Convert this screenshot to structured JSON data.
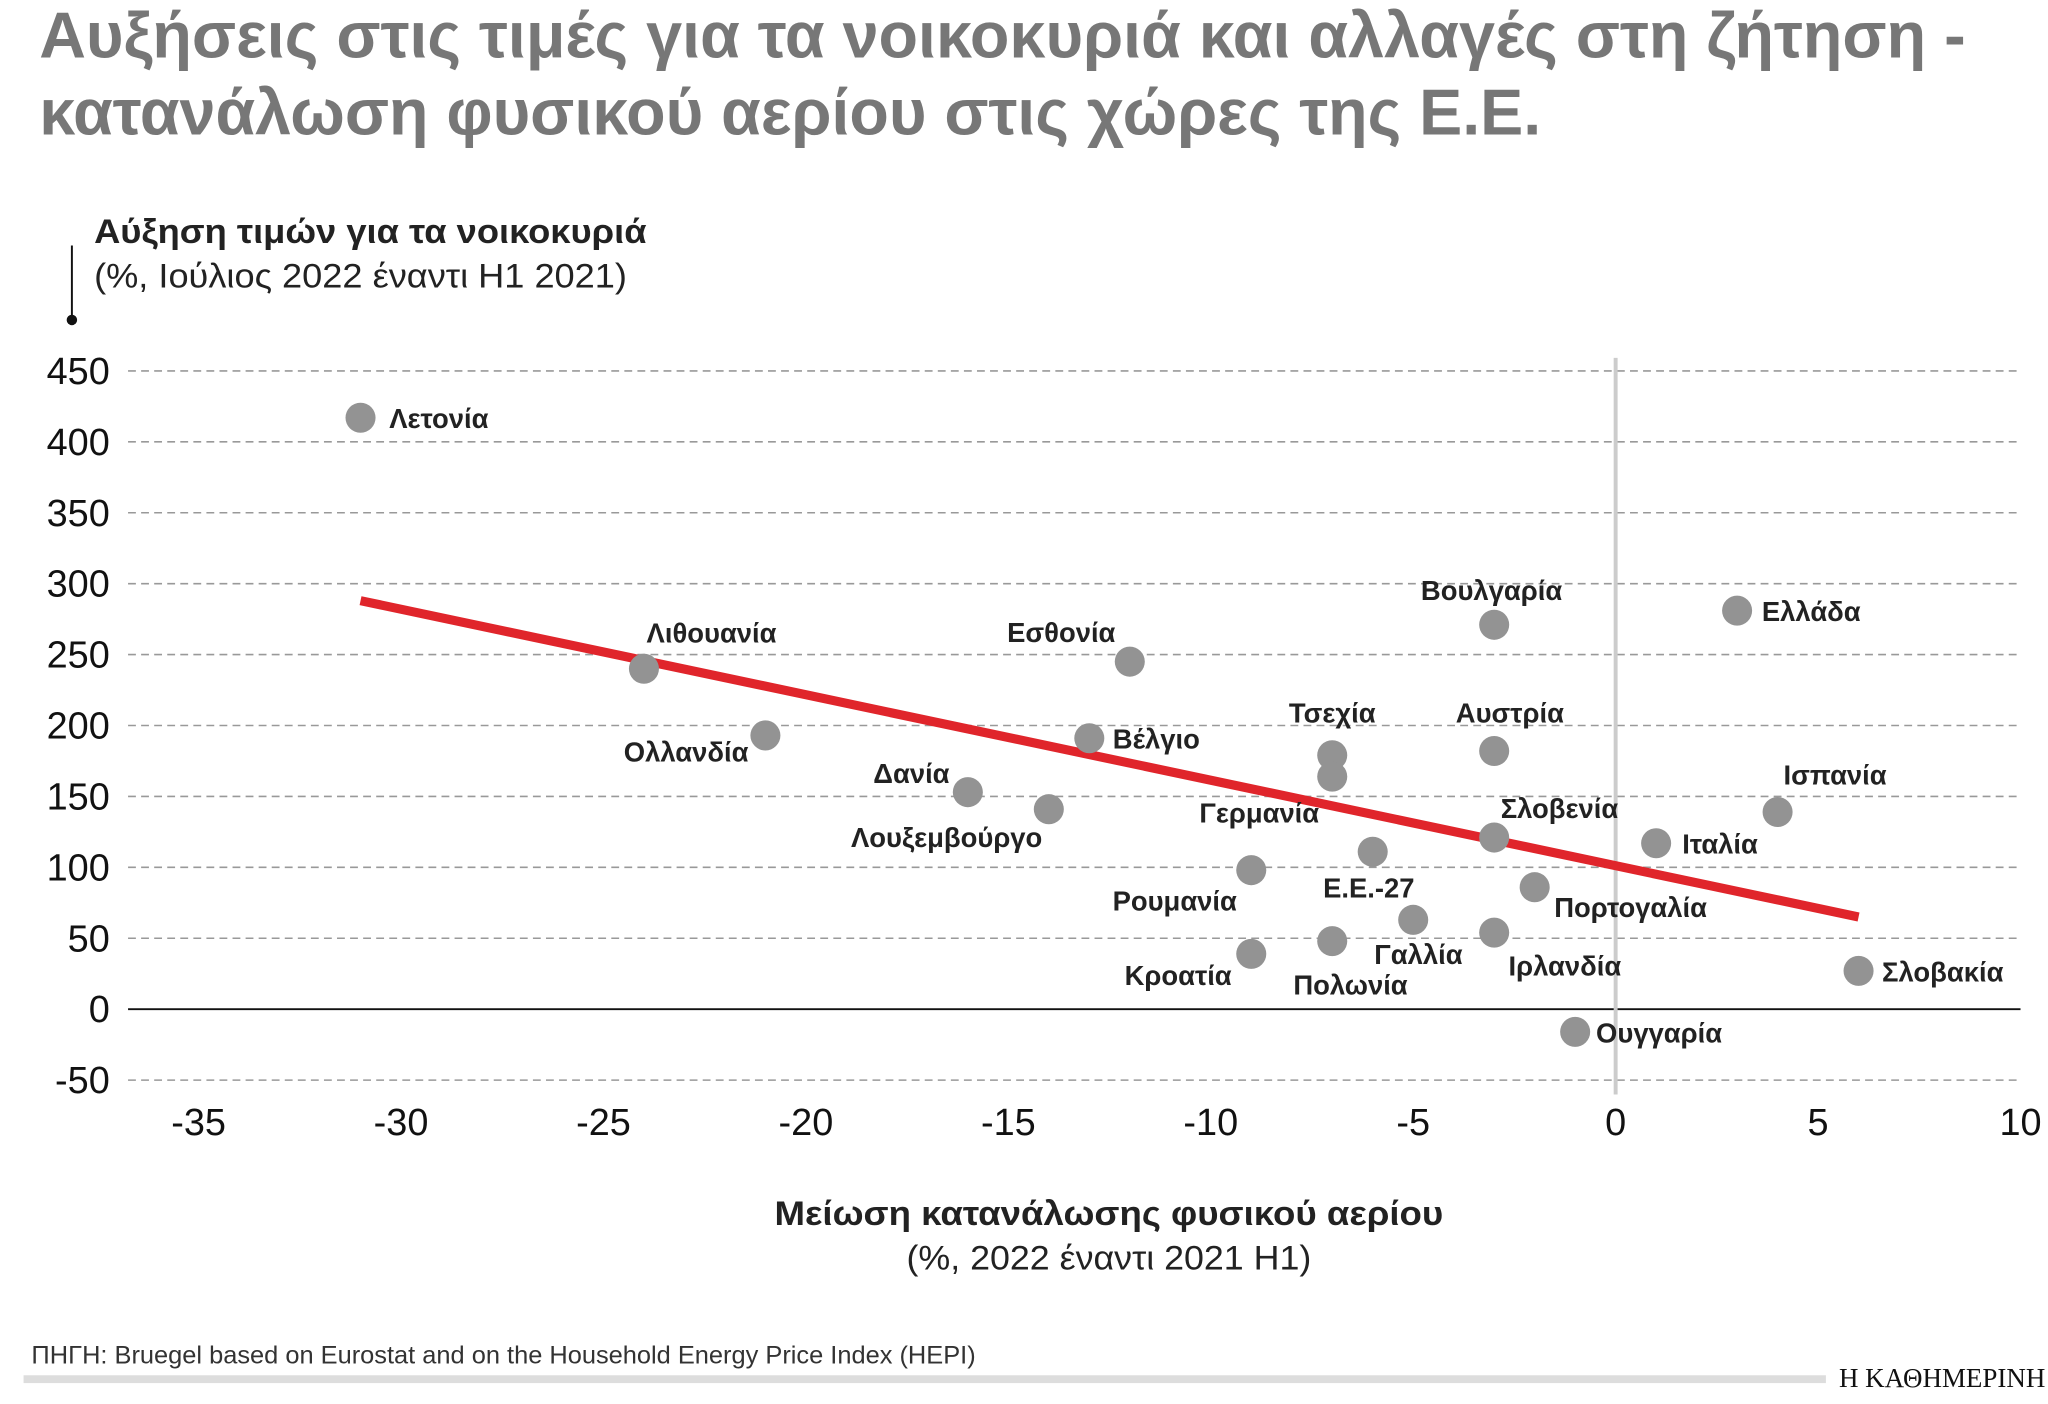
{
  "title_line1": "Αυξήσεις στις τιμές για τα νοικοκυριά και αλλαγές στη ζήτηση -",
  "title_line2": "κατανάλωση φυσικού αερίου στις χώρες της Ε.Ε.",
  "source": "ΠΗΓΗ: Bruegel based on Eurostat and on the Household Energy Price Index (HEPI)",
  "logo": "Η ΚΑΘΗΜΕΡΙΝΗ",
  "chart_data": {
    "type": "scatter",
    "ylabel": "Αύξηση τιμών για τα νοικοκυριά",
    "ylabel_sub": "(%, Ιούλιος 2022 έναντι Η1 2021)",
    "xlabel": "Μείωση κατανάλωσης φυσικού αερίου",
    "xlabel_sub": "(%, 2022 έναντι 2021 Η1)",
    "xlim": [
      -35,
      10
    ],
    "ylim": [
      -50,
      450
    ],
    "xticks": [
      "-35",
      "-30",
      "-25",
      "-20",
      "-15",
      "-10",
      "-5",
      "0",
      "5",
      "10"
    ],
    "yticks": [
      "450",
      "400",
      "350",
      "300",
      "250",
      "200",
      "150",
      "100",
      "50",
      "0",
      "-50"
    ],
    "grid": "horizontal dashed",
    "point_color": "#939393",
    "trend_color": "#e0252b",
    "trendline": {
      "x": [
        -31,
        6
      ],
      "y": [
        288,
        65
      ]
    },
    "points": [
      {
        "label": "Λετονία",
        "x": -31,
        "y": 417
      },
      {
        "label": "Λιθουανία",
        "x": -24,
        "y": 240
      },
      {
        "label": "Ολλανδία",
        "x": -21,
        "y": 193
      },
      {
        "label": "Δανία",
        "x": -16,
        "y": 153
      },
      {
        "label": "Λουξεμβούργο",
        "x": -14,
        "y": 141
      },
      {
        "label": "Βέλγιο",
        "x": -13,
        "y": 191
      },
      {
        "label": "Εσθονία",
        "x": -12,
        "y": 245
      },
      {
        "label": "Ρουμανία",
        "x": -9,
        "y": 98
      },
      {
        "label": "Κροατία",
        "x": -9,
        "y": 39
      },
      {
        "label": "Τσεχία",
        "x": -7,
        "y": 179
      },
      {
        "label": "Γερμανία",
        "x": -7,
        "y": 164
      },
      {
        "label": "Πολωνία",
        "x": -7,
        "y": 48
      },
      {
        "label": "Ε.Ε.-27",
        "x": -6,
        "y": 111
      },
      {
        "label": "Γαλλία",
        "x": -5,
        "y": 63
      },
      {
        "label": "Βουλγαρία",
        "x": -3,
        "y": 271
      },
      {
        "label": "Αυστρία",
        "x": -3,
        "y": 182
      },
      {
        "label": "Σλοβενία",
        "x": -3,
        "y": 121
      },
      {
        "label": "Ιρλανδία",
        "x": -3,
        "y": 54
      },
      {
        "label": "Πορτογαλία",
        "x": -2,
        "y": 86
      },
      {
        "label": "Ουγγαρία",
        "x": -1,
        "y": -16
      },
      {
        "label": "Ιταλία",
        "x": 1,
        "y": 117
      },
      {
        "label": "Ελλάδα",
        "x": 3,
        "y": 281
      },
      {
        "label": "Ισπανία",
        "x": 4,
        "y": 139
      },
      {
        "label": "Σλοβακία",
        "x": 6,
        "y": 27
      }
    ]
  }
}
